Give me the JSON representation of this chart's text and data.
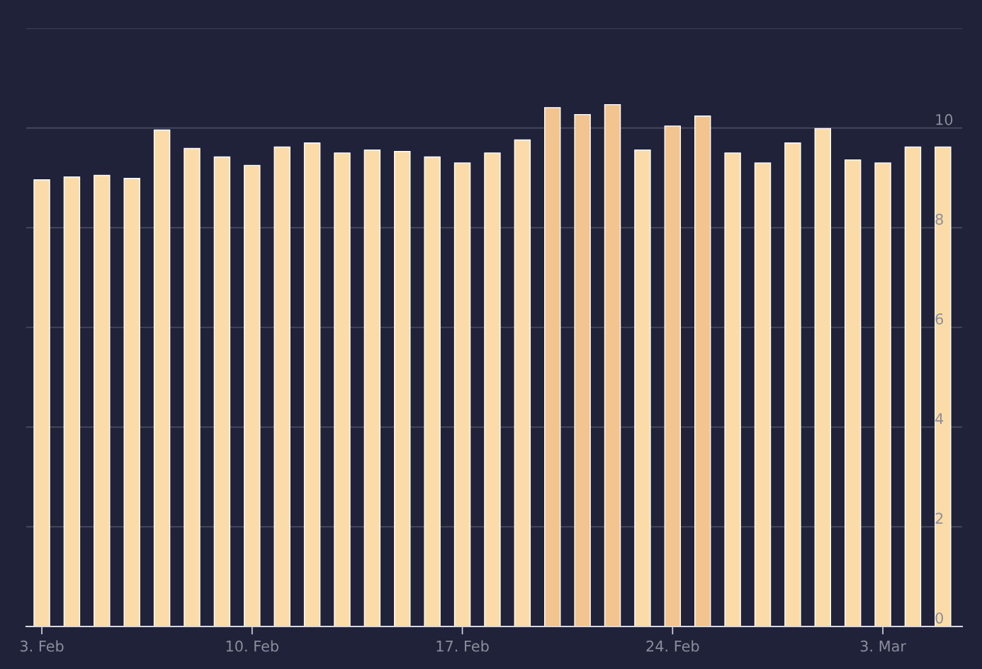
{
  "chart_data": {
    "type": "bar",
    "categories": [
      "3. Feb",
      null,
      null,
      null,
      null,
      null,
      null,
      "10. Feb",
      null,
      null,
      null,
      null,
      null,
      null,
      "17. Feb",
      null,
      null,
      null,
      null,
      null,
      null,
      "24. Feb",
      null,
      null,
      null,
      null,
      null,
      null,
      "3. Mar",
      null,
      null
    ],
    "values": [
      8.96,
      9.02,
      9.05,
      8.99,
      9.96,
      9.59,
      9.42,
      9.25,
      9.62,
      9.7,
      9.5,
      9.56,
      9.53,
      9.42,
      9.3,
      9.5,
      9.76,
      10.41,
      10.27,
      10.47,
      9.56,
      10.04,
      10.24,
      9.5,
      9.3,
      9.7,
      9.99,
      9.36,
      9.3,
      9.62,
      9.62
    ],
    "colors": [
      "#fbdca8",
      "#fbdca8",
      "#fbdca8",
      "#fbdca8",
      "#fbdca8",
      "#fbdca8",
      "#fbdca8",
      "#fbdca8",
      "#fbdca8",
      "#fbdca8",
      "#fbdca8",
      "#fbdca8",
      "#fbdca8",
      "#fbdca8",
      "#fbdca8",
      "#fbdca8",
      "#fbdca8",
      "#f2c48f",
      "#f2c48f",
      "#f2c48f",
      "#fbdca8",
      "#f2c48f",
      "#f2c48f",
      "#fbdca8",
      "#fbdca8",
      "#fbdca8",
      "#fbdca8",
      "#fbdca8",
      "#fbdca8",
      "#fbdca8",
      "#fbdca8"
    ],
    "ylim": [
      0,
      12
    ],
    "yticks": [
      0,
      2,
      4,
      6,
      8,
      10,
      {
        "value": 12,
        "label": null
      }
    ],
    "grid": "y"
  }
}
